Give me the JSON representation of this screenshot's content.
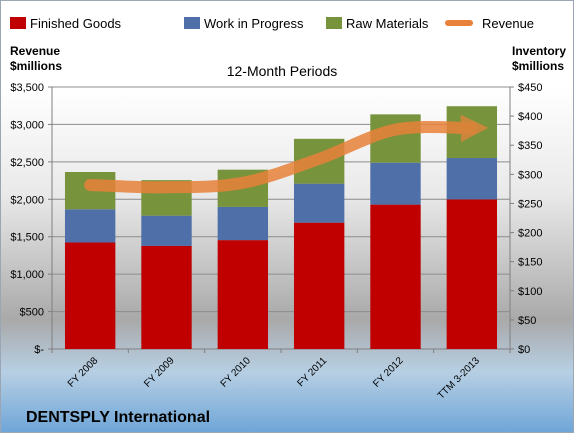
{
  "chart_data": {
    "type": "bar",
    "title": "12-Month Periods",
    "footer_title": "DENTSPLY International",
    "left_axis_label": [
      "Revenue",
      "$millions"
    ],
    "right_axis_label": [
      "Inventory",
      "$millions"
    ],
    "categories": [
      "FY 2008",
      "FY 2009",
      "FY 2010",
      "FY 2011",
      "FY 2012",
      "TTM 3-2013"
    ],
    "left_ticks": [
      "$-",
      "$500",
      "$1,000",
      "$1,500",
      "$2,000",
      "$2,500",
      "$3,000",
      "$3,500"
    ],
    "right_ticks": [
      "$0",
      "$50",
      "$100",
      "$150",
      "$200",
      "$250",
      "$300",
      "$350",
      "$400",
      "$450"
    ],
    "ylim_left": [
      0,
      3500
    ],
    "ylim_right": [
      0,
      450
    ],
    "legend_position": "top",
    "series": [
      {
        "name": "Finished Goods",
        "color": "#c00000",
        "stacked": true,
        "axis": "right",
        "values": [
          183,
          177,
          187,
          217,
          248,
          257
        ]
      },
      {
        "name": "Work in Progress",
        "color": "#4f6fa8",
        "stacked": true,
        "axis": "right",
        "values": [
          57,
          52,
          57,
          67,
          72,
          71
        ]
      },
      {
        "name": "Raw Materials",
        "color": "#77933c",
        "stacked": true,
        "axis": "right",
        "values": [
          64,
          61,
          64,
          77,
          83,
          89
        ]
      },
      {
        "name": "Revenue",
        "color": "#e8823a",
        "type": "line",
        "axis": "left",
        "values": [
          2190,
          2160,
          2220,
          2540,
          2930,
          2950
        ]
      }
    ]
  }
}
